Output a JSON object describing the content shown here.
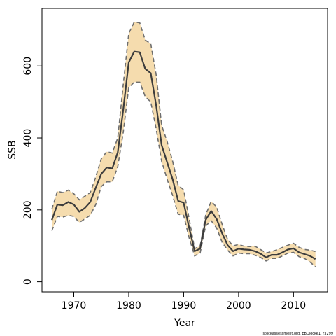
{
  "chart_data": {
    "type": "line",
    "title": "",
    "xlabel": "Year",
    "ylabel": "SSB",
    "xlim": [
      1964.2,
      2016.2
    ],
    "ylim": [
      -28,
      760
    ],
    "x_ticks": [
      1970,
      1980,
      1990,
      2000,
      2010
    ],
    "y_ticks": [
      0,
      200,
      400,
      600
    ],
    "grid": false,
    "legend": "none",
    "x": [
      1966,
      1967,
      1968,
      1969,
      1970,
      1971,
      1972,
      1973,
      1974,
      1975,
      1976,
      1977,
      1978,
      1979,
      1980,
      1981,
      1982,
      1983,
      1984,
      1985,
      1986,
      1987,
      1988,
      1989,
      1990,
      1991,
      1992,
      1993,
      1994,
      1995,
      1996,
      1997,
      1998,
      1999,
      2000,
      2001,
      2002,
      2003,
      2004,
      2005,
      2006,
      2007,
      2008,
      2009,
      2010,
      2011,
      2012,
      2013,
      2014
    ],
    "series": [
      {
        "role": "estimate",
        "values": [
          172,
          215,
          213,
          222,
          215,
          195,
          205,
          222,
          262,
          300,
          318,
          315,
          360,
          478,
          610,
          640,
          638,
          592,
          580,
          490,
          380,
          332,
          285,
          225,
          220,
          150,
          85,
          92,
          172,
          197,
          175,
          135,
          102,
          85,
          92,
          90,
          89,
          85,
          78,
          68,
          75,
          75,
          82,
          90,
          93,
          82,
          77,
          72,
          63
        ]
      },
      {
        "role": "upper",
        "values": [
          202,
          252,
          248,
          255,
          245,
          228,
          238,
          248,
          292,
          342,
          362,
          358,
          400,
          548,
          690,
          722,
          720,
          672,
          662,
          575,
          435,
          390,
          335,
          268,
          256,
          176,
          92,
          100,
          185,
          224,
          208,
          160,
          118,
          100,
          104,
          99,
          98,
          99,
          90,
          80,
          84,
          89,
          96,
          102,
          107,
          96,
          90,
          88,
          84
        ]
      },
      {
        "role": "lower",
        "values": [
          142,
          182,
          180,
          185,
          182,
          165,
          175,
          185,
          215,
          265,
          278,
          278,
          320,
          415,
          540,
          555,
          555,
          515,
          500,
          425,
          335,
          285,
          240,
          188,
          185,
          122,
          72,
          80,
          155,
          170,
          150,
          110,
          88,
          72,
          80,
          78,
          78,
          74,
          68,
          58,
          65,
          65,
          72,
          80,
          82,
          70,
          65,
          55,
          42
        ]
      }
    ],
    "colors": {
      "band_fill": "#f5dcae",
      "band_edge": "#6e6e6e",
      "estimate_line": "#3c3c3c",
      "frame": "#000000"
    }
  },
  "footnote": "stockassessment.org, EBQjocke1, r3299"
}
